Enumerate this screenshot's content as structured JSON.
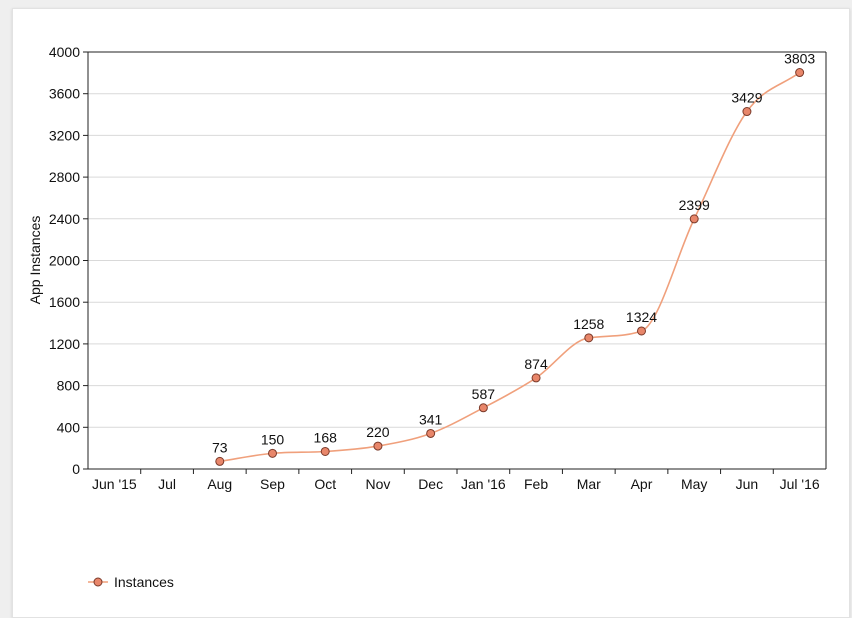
{
  "chart_data": {
    "type": "line",
    "title": "",
    "xlabel": "",
    "ylabel": "App Instances",
    "ylim": [
      0,
      4000
    ],
    "yticks": [
      0,
      400,
      800,
      1200,
      1600,
      2000,
      2400,
      2800,
      3200,
      3600,
      4000
    ],
    "categories": [
      "Jun '15",
      "Jul",
      "Aug",
      "Sep",
      "Oct",
      "Nov",
      "Dec",
      "Jan '16",
      "Feb",
      "Mar",
      "Apr",
      "May",
      "Jun",
      "Jul '16"
    ],
    "series": [
      {
        "name": "Instances",
        "color": "#f0a07c",
        "marker_fill": "#e8866a",
        "values": [
          null,
          null,
          73,
          150,
          168,
          220,
          341,
          587,
          874,
          1258,
          1324,
          2399,
          3429,
          3803
        ]
      }
    ],
    "grid": true,
    "legend_position": "bottom-left"
  }
}
